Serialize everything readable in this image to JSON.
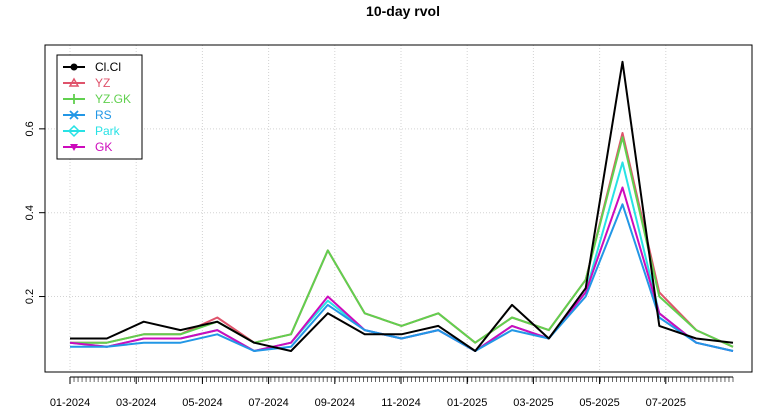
{
  "chart_data": {
    "type": "line",
    "title": "10-day rvol",
    "xlabel": "",
    "ylabel": "",
    "ylim": [
      0.02,
      0.8
    ],
    "y_ticks": [
      0.2,
      0.4,
      0.6
    ],
    "y_tick_labels": [
      "0.2",
      "0.4",
      "0.6"
    ],
    "x_tick_labels": [
      "01-2024",
      "03-2024",
      "05-2024",
      "07-2024",
      "09-2024",
      "11-2024",
      "01-2025",
      "03-2025",
      "05-2025",
      "07-2025"
    ],
    "grid": true,
    "legend_position": "top-left",
    "x": [
      "2024-01",
      "2024-02",
      "2024-03",
      "2024-04",
      "2024-05",
      "2024-06",
      "2024-07",
      "2024-08",
      "2024-09",
      "2024-10",
      "2024-11",
      "2024-12",
      "2025-01",
      "2025-02",
      "2025-03",
      "2025-04",
      "2025-05",
      "2025-06",
      "2025-07"
    ],
    "series": [
      {
        "name": "Cl.Cl",
        "color": "#000000",
        "marker": "dot",
        "values": [
          0.1,
          0.1,
          0.14,
          0.12,
          0.14,
          0.09,
          0.07,
          0.16,
          0.11,
          0.11,
          0.13,
          0.07,
          0.18,
          0.1,
          0.22,
          0.76,
          0.13,
          0.1,
          0.09
        ]
      },
      {
        "name": "YZ",
        "color": "#DF536B",
        "marker": "triangle",
        "values": [
          0.09,
          0.09,
          0.11,
          0.11,
          0.15,
          0.09,
          0.11,
          0.31,
          0.16,
          0.13,
          0.16,
          0.09,
          0.15,
          0.12,
          0.24,
          0.59,
          0.21,
          0.12,
          0.08
        ]
      },
      {
        "name": "YZ.GK",
        "color": "#61D04F",
        "marker": "plus",
        "values": [
          0.09,
          0.09,
          0.11,
          0.11,
          0.14,
          0.09,
          0.11,
          0.31,
          0.16,
          0.13,
          0.16,
          0.09,
          0.15,
          0.12,
          0.24,
          0.58,
          0.2,
          0.12,
          0.08
        ]
      },
      {
        "name": "RS",
        "color": "#2297E6",
        "marker": "cross",
        "values": [
          0.08,
          0.08,
          0.09,
          0.09,
          0.11,
          0.07,
          0.08,
          0.18,
          0.12,
          0.1,
          0.12,
          0.07,
          0.12,
          0.1,
          0.2,
          0.42,
          0.15,
          0.09,
          0.07
        ]
      },
      {
        "name": "Park",
        "color": "#28E2E5",
        "marker": "diamond",
        "values": [
          0.09,
          0.08,
          0.1,
          0.1,
          0.12,
          0.07,
          0.09,
          0.19,
          0.12,
          0.1,
          0.12,
          0.07,
          0.13,
          0.1,
          0.21,
          0.52,
          0.16,
          0.09,
          0.07
        ]
      },
      {
        "name": "GK",
        "color": "#CD0BBC",
        "marker": "triangle-down",
        "values": [
          0.09,
          0.08,
          0.1,
          0.1,
          0.12,
          0.07,
          0.09,
          0.2,
          0.12,
          0.1,
          0.12,
          0.07,
          0.13,
          0.1,
          0.21,
          0.46,
          0.16,
          0.09,
          0.07
        ]
      }
    ]
  }
}
